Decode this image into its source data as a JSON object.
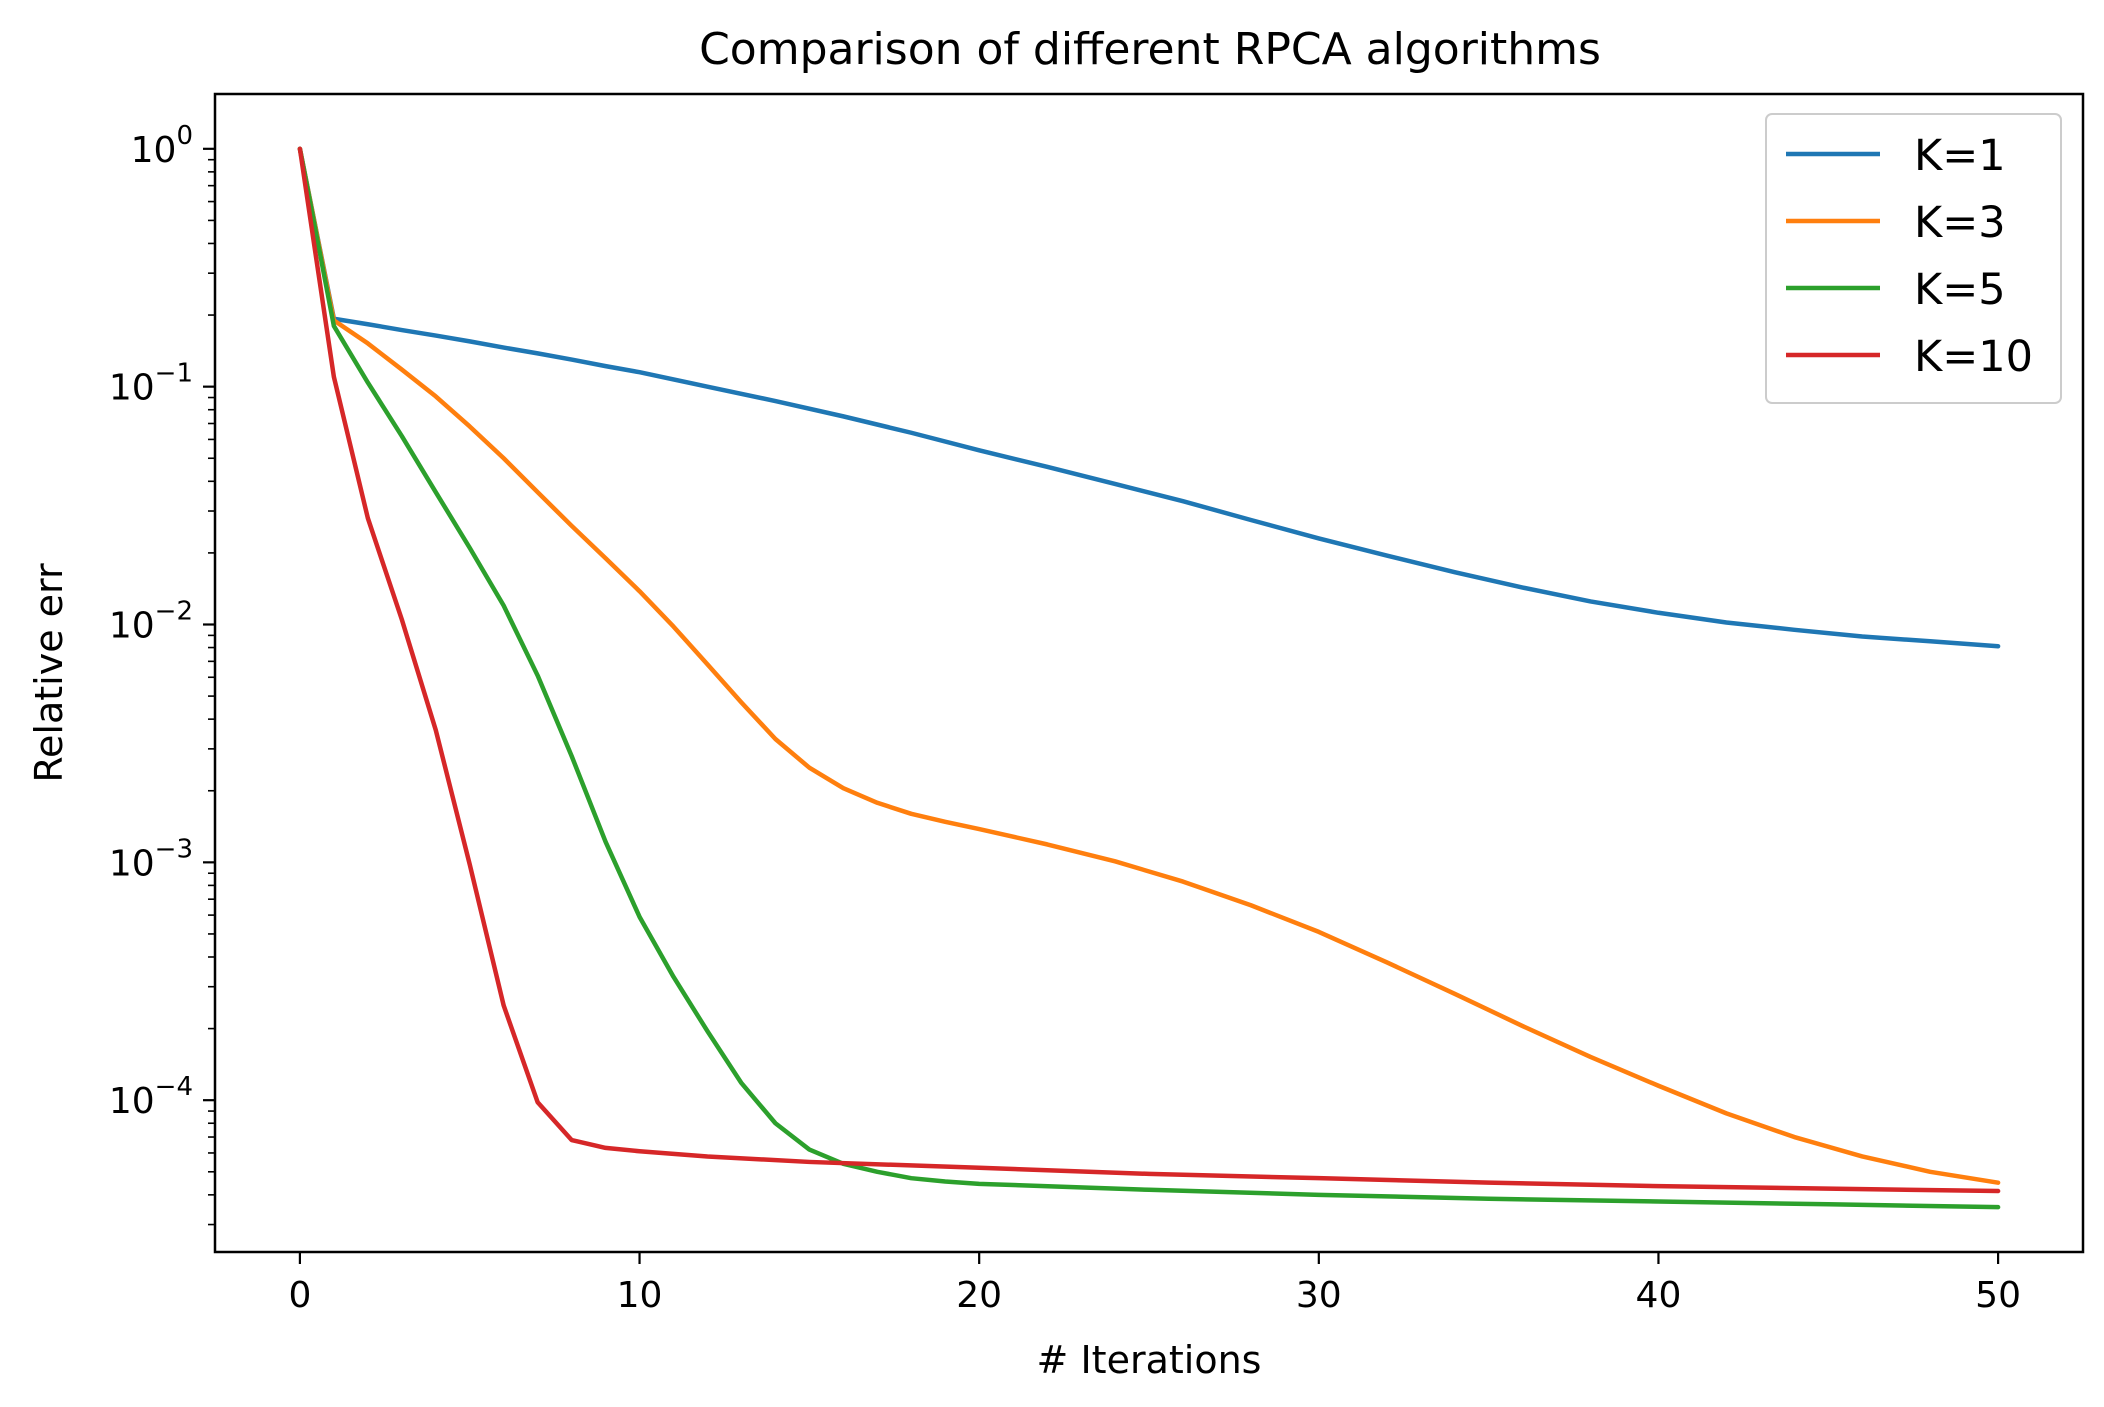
{
  "chart_data": {
    "type": "line",
    "title": "Comparison of different RPCA algorithms",
    "xlabel": "# Iterations",
    "ylabel": "Relative err",
    "yscale": "log",
    "xlim": [
      -2.5,
      52.5
    ],
    "ylim": [
      2.3e-05,
      1.7
    ],
    "x_ticks": [
      0,
      10,
      20,
      30,
      40,
      50
    ],
    "y_ticks": [
      {
        "value": 1,
        "base": "10",
        "exponent": "0"
      },
      {
        "value": 0.1,
        "base": "10",
        "exponent": "−1"
      },
      {
        "value": 0.01,
        "base": "10",
        "exponent": "−2"
      },
      {
        "value": 0.001,
        "base": "10",
        "exponent": "−3"
      },
      {
        "value": 0.0001,
        "base": "10",
        "exponent": "−4"
      }
    ],
    "legend_position": "top-right",
    "grid": false,
    "series": [
      {
        "name": "K=1",
        "color": "#1f77b4",
        "points": [
          [
            0,
            1.0
          ],
          [
            1,
            0.193
          ],
          [
            2,
            0.183
          ],
          [
            3,
            0.173
          ],
          [
            4,
            0.164
          ],
          [
            5,
            0.155
          ],
          [
            6,
            0.146
          ],
          [
            7,
            0.138
          ],
          [
            8,
            0.13
          ],
          [
            9,
            0.122
          ],
          [
            10,
            0.115
          ],
          [
            12,
            0.1
          ],
          [
            14,
            0.087
          ],
          [
            16,
            0.075
          ],
          [
            18,
            0.064
          ],
          [
            20,
            0.054
          ],
          [
            22,
            0.046
          ],
          [
            24,
            0.039
          ],
          [
            26,
            0.033
          ],
          [
            28,
            0.0275
          ],
          [
            30,
            0.023
          ],
          [
            32,
            0.0195
          ],
          [
            34,
            0.0166
          ],
          [
            36,
            0.0143
          ],
          [
            38,
            0.0125
          ],
          [
            40,
            0.0112
          ],
          [
            42,
            0.0102
          ],
          [
            44,
            0.0095
          ],
          [
            46,
            0.0089
          ],
          [
            48,
            0.0085
          ],
          [
            50,
            0.0081
          ]
        ]
      },
      {
        "name": "K=3",
        "color": "#ff7f0e",
        "points": [
          [
            0,
            1.0
          ],
          [
            1,
            0.19
          ],
          [
            2,
            0.152
          ],
          [
            3,
            0.118
          ],
          [
            4,
            0.091
          ],
          [
            5,
            0.068
          ],
          [
            6,
            0.05
          ],
          [
            7,
            0.036
          ],
          [
            8,
            0.026
          ],
          [
            9,
            0.019
          ],
          [
            10,
            0.0138
          ],
          [
            11,
            0.0098
          ],
          [
            12,
            0.0068
          ],
          [
            13,
            0.0047
          ],
          [
            14,
            0.0033
          ],
          [
            15,
            0.0025
          ],
          [
            16,
            0.00205
          ],
          [
            17,
            0.00178
          ],
          [
            18,
            0.0016
          ],
          [
            19,
            0.00148
          ],
          [
            20,
            0.00138
          ],
          [
            22,
            0.00119
          ],
          [
            24,
            0.00101
          ],
          [
            26,
            0.00083
          ],
          [
            28,
            0.00066
          ],
          [
            30,
            0.00051
          ],
          [
            32,
            0.00038
          ],
          [
            34,
            0.00028
          ],
          [
            36,
            0.000205
          ],
          [
            38,
            0.000152
          ],
          [
            40,
            0.000115
          ],
          [
            42,
            8.8e-05
          ],
          [
            44,
            7e-05
          ],
          [
            46,
            5.8e-05
          ],
          [
            48,
            5e-05
          ],
          [
            50,
            4.5e-05
          ]
        ]
      },
      {
        "name": "K=5",
        "color": "#2ca02c",
        "points": [
          [
            0,
            1.0
          ],
          [
            1,
            0.18
          ],
          [
            2,
            0.104
          ],
          [
            3,
            0.062
          ],
          [
            4,
            0.036
          ],
          [
            5,
            0.021
          ],
          [
            6,
            0.012
          ],
          [
            7,
            0.0061
          ],
          [
            8,
            0.0028
          ],
          [
            9,
            0.00122
          ],
          [
            10,
            0.00059
          ],
          [
            11,
            0.00033
          ],
          [
            12,
            0.000195
          ],
          [
            13,
            0.000118
          ],
          [
            14,
            8e-05
          ],
          [
            15,
            6.2e-05
          ],
          [
            16,
            5.4e-05
          ],
          [
            17,
            5e-05
          ],
          [
            18,
            4.7e-05
          ],
          [
            19,
            4.55e-05
          ],
          [
            20,
            4.45e-05
          ],
          [
            25,
            4.2e-05
          ],
          [
            30,
            4e-05
          ],
          [
            35,
            3.85e-05
          ],
          [
            40,
            3.75e-05
          ],
          [
            45,
            3.65e-05
          ],
          [
            50,
            3.55e-05
          ]
        ]
      },
      {
        "name": "K=10",
        "color": "#d62728",
        "points": [
          [
            0,
            1.0
          ],
          [
            1,
            0.11
          ],
          [
            2,
            0.028
          ],
          [
            3,
            0.0105
          ],
          [
            4,
            0.0036
          ],
          [
            5,
            0.00098
          ],
          [
            6,
            0.00025
          ],
          [
            7,
            9.8e-05
          ],
          [
            8,
            6.8e-05
          ],
          [
            9,
            6.3e-05
          ],
          [
            10,
            6.1e-05
          ],
          [
            12,
            5.8e-05
          ],
          [
            15,
            5.5e-05
          ],
          [
            20,
            5.2e-05
          ],
          [
            25,
            4.9e-05
          ],
          [
            30,
            4.7e-05
          ],
          [
            35,
            4.5e-05
          ],
          [
            40,
            4.35e-05
          ],
          [
            45,
            4.25e-05
          ],
          [
            50,
            4.15e-05
          ]
        ]
      }
    ]
  }
}
